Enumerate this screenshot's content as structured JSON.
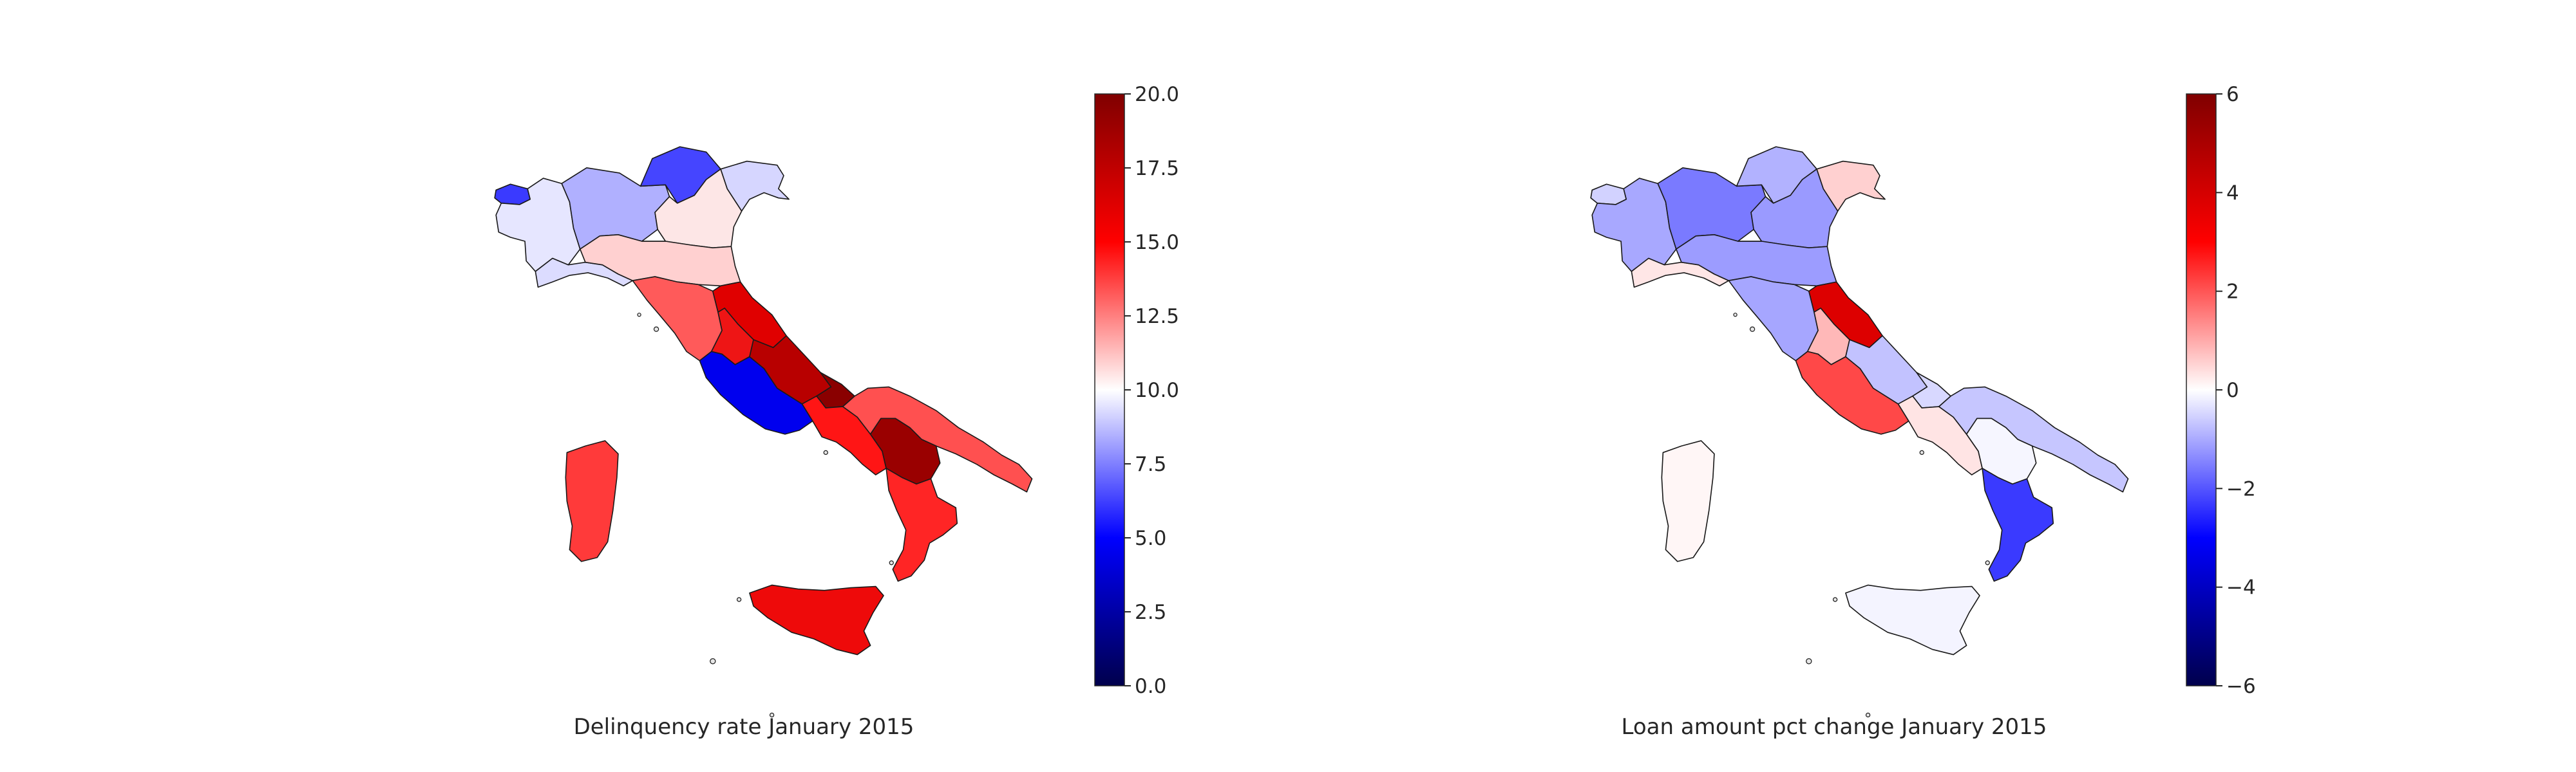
{
  "maps": [
    {
      "title": "Delinquency rate January 2015",
      "colorbar": {
        "colormap": "seismic",
        "vmin": 0,
        "vmax": 20,
        "ticks": [
          "0.0",
          "2.5",
          "5.0",
          "7.5",
          "10.0",
          "12.5",
          "15.0",
          "17.5",
          "20.0"
        ]
      },
      "region_colors": {
        "valle-daosta": "#3a3aff",
        "piemonte": "#e6e6ff",
        "lombardia": "#b0b0ff",
        "trentino": "#4545ff",
        "veneto": "#fde6e6",
        "friuli": "#d6d6ff",
        "liguria": "#dcdcff",
        "emilia-romagna": "#ffd0d0",
        "toscana": "#ff5a5a",
        "umbria": "#ee1515",
        "marche": "#e00000",
        "lazio": "#0000ee",
        "abruzzo": "#b80000",
        "molise": "#8a0000",
        "campania": "#ff1515",
        "puglia": "#ff5050",
        "basilicata": "#9a0000",
        "calabria": "#ff2525",
        "sicilia": "#ee0a0a",
        "sardegna": "#ff3a3a"
      }
    },
    {
      "title": "Loan amount pct change January 2015",
      "colorbar": {
        "colormap": "seismic",
        "vmin": -6,
        "vmax": 6,
        "ticks": [
          "−6",
          "−4",
          "−2",
          "0",
          "2",
          "4",
          "6"
        ]
      },
      "region_colors": {
        "valle-daosta": "#d2d2ff",
        "piemonte": "#a8a8ff",
        "lombardia": "#7a7aff",
        "trentino": "#b2b2ff",
        "veneto": "#9a9aff",
        "friuli": "#ffd0d0",
        "liguria": "#ffe6e6",
        "emilia-romagna": "#9c9cff",
        "toscana": "#a6a6ff",
        "umbria": "#ffb8b8",
        "marche": "#dd0000",
        "lazio": "#ff4848",
        "abruzzo": "#c2c2ff",
        "molise": "#d8d8ff",
        "campania": "#ffe4e4",
        "puglia": "#c6c6ff",
        "basilicata": "#f6f6ff",
        "calabria": "#3a3aff",
        "sicilia": "#f4f4ff",
        "sardegna": "#fff6f6"
      }
    }
  ]
}
